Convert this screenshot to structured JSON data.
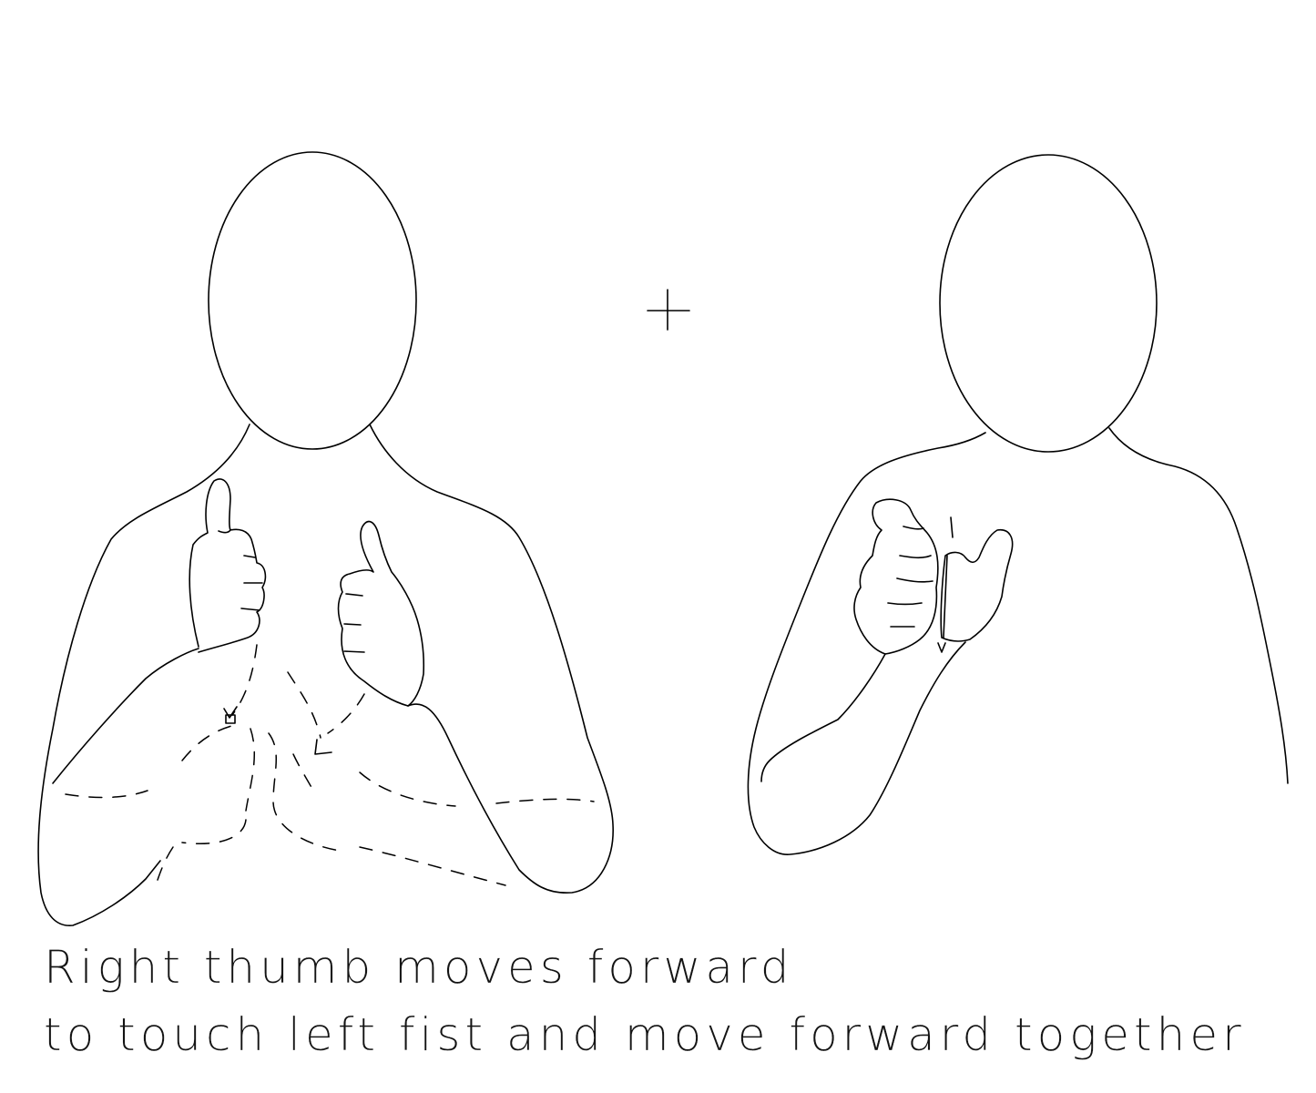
{
  "caption": {
    "line1": "Right thumb moves forward",
    "line2": "to touch left fist and move forward together"
  },
  "colors": {
    "ink": "#000000",
    "background": "#ffffff"
  }
}
